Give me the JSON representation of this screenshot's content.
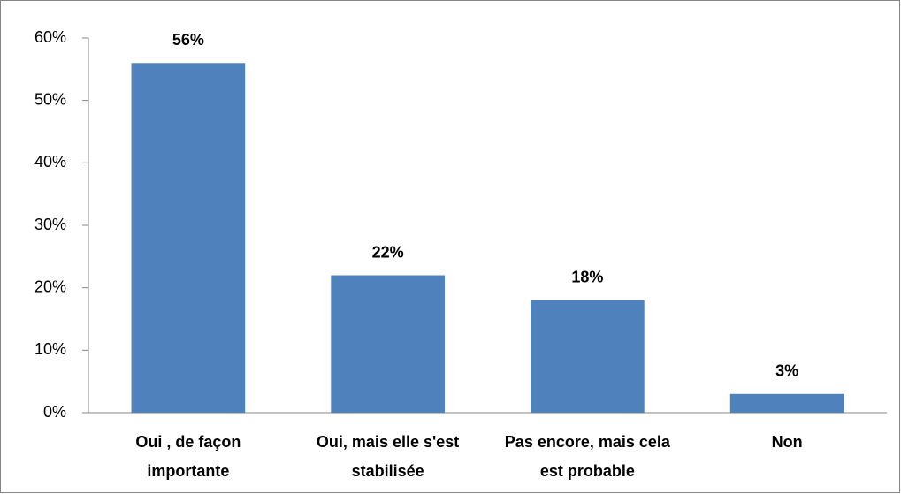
{
  "chart_data": {
    "type": "bar",
    "categories": [
      "Oui , de façon importante",
      "Oui, mais elle s'est stabilisée",
      "Pas encore, mais cela est probable",
      "Non"
    ],
    "values": [
      56,
      22,
      18,
      3
    ],
    "value_labels": [
      "56%",
      "22%",
      "18%",
      "3%"
    ],
    "color": "#4f81bd",
    "ylim": [
      0,
      60
    ],
    "yticks": [
      {
        "value": 0,
        "label": "0%"
      },
      {
        "value": 10,
        "label": "10%"
      },
      {
        "value": 20,
        "label": "20%"
      },
      {
        "value": 30,
        "label": "30%"
      },
      {
        "value": 40,
        "label": "40%"
      },
      {
        "value": 50,
        "label": "50%"
      },
      {
        "value": 60,
        "label": "60%"
      }
    ],
    "grid": false
  }
}
